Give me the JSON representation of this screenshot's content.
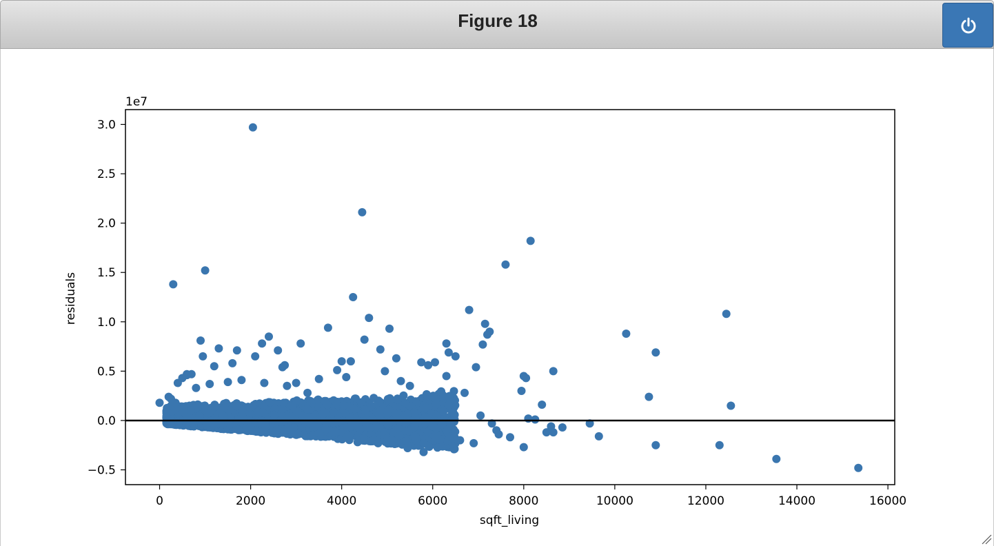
{
  "window": {
    "title": "Figure 18",
    "power_icon": "power-icon"
  },
  "colors": {
    "titlebar_button": "#3a77b5",
    "points": "#3a76af",
    "zero_line": "#000000"
  },
  "chart_data": {
    "type": "scatter",
    "title": "",
    "xlabel": "sqft_living",
    "ylabel": "residuals",
    "y_offset_label": "1e7",
    "xlim": [
      -750,
      16150
    ],
    "ylim": [
      -6500000,
      31500000
    ],
    "x_ticks": [
      0,
      2000,
      4000,
      6000,
      8000,
      10000,
      12000,
      14000,
      16000
    ],
    "x_tick_labels": [
      "0",
      "2000",
      "4000",
      "6000",
      "8000",
      "10000",
      "12000",
      "14000",
      "16000"
    ],
    "y_ticks": [
      -5000000,
      0,
      5000000,
      10000000,
      15000000,
      20000000,
      25000000,
      30000000
    ],
    "y_tick_labels": [
      "−0.5",
      "0.0",
      "0.5",
      "1.0",
      "1.5",
      "2.0",
      "2.5",
      "3.0"
    ],
    "grid": false,
    "hline_y": 0,
    "series": [
      {
        "x": [
          2050,
          4450,
          8150,
          7600,
          1000,
          300,
          4250,
          6800,
          12450,
          4600,
          7150,
          5050,
          3700,
          7250,
          10250,
          10900,
          2400,
          4500,
          900,
          3100,
          2250,
          6300,
          1300,
          4850,
          2600,
          1700,
          5200,
          4200,
          4000,
          950,
          2100,
          6350,
          5750,
          7100,
          6500,
          7200,
          1200,
          2750,
          6950,
          8650,
          1600,
          6050,
          3900,
          8000,
          8050,
          5900,
          600,
          700,
          2700,
          4950,
          10750,
          8400,
          12550,
          6700,
          7950,
          8100,
          8250,
          9450,
          8600,
          8850,
          9650,
          8500,
          8650,
          7450,
          7700,
          8000,
          10900,
          12300,
          13550,
          15350,
          5450,
          5800,
          5100,
          4800,
          4350,
          6900,
          6450,
          6600,
          5600,
          7400,
          7300,
          7050,
          6300,
          3000,
          3500,
          4100,
          5300,
          5500,
          3250,
          2800,
          2300,
          1800,
          1500,
          1100,
          800,
          500,
          400,
          200,
          0,
          150,
          600,
          250,
          350
        ],
        "y": [
          29700000,
          21100000,
          18200000,
          15800000,
          15200000,
          13800000,
          12500000,
          11200000,
          10800000,
          10400000,
          9800000,
          9300000,
          9400000,
          9000000,
          8800000,
          6900000,
          8500000,
          8200000,
          8100000,
          7800000,
          7800000,
          7800000,
          7300000,
          7200000,
          7100000,
          7100000,
          6300000,
          6000000,
          6000000,
          6500000,
          6500000,
          6900000,
          5900000,
          7700000,
          6500000,
          8700000,
          5500000,
          5600000,
          5400000,
          5000000,
          5800000,
          5900000,
          5100000,
          4500000,
          4300000,
          5600000,
          4700000,
          4700000,
          5400000,
          5000000,
          2400000,
          1600000,
          1500000,
          2800000,
          3000000,
          200000,
          100000,
          -300000,
          -600000,
          -700000,
          -1600000,
          -1200000,
          -1200000,
          -1400000,
          -1700000,
          -2700000,
          -2500000,
          -2500000,
          -3900000,
          -4800000,
          -2800000,
          -3200000,
          -2000000,
          -2300000,
          -2200000,
          -2300000,
          -1800000,
          -2000000,
          -1600000,
          -1000000,
          -300000,
          500000,
          4500000,
          3800000,
          4200000,
          4400000,
          4000000,
          3500000,
          2800000,
          3500000,
          3800000,
          4100000,
          3900000,
          3700000,
          3300000,
          4300000,
          3800000,
          2400000,
          1800000,
          300000,
          4600000,
          2200000,
          1800000
        ]
      }
    ],
    "dense_cloud": {
      "sqft_range": [
        150,
        6500
      ],
      "residual_band_note": ""
    }
  }
}
